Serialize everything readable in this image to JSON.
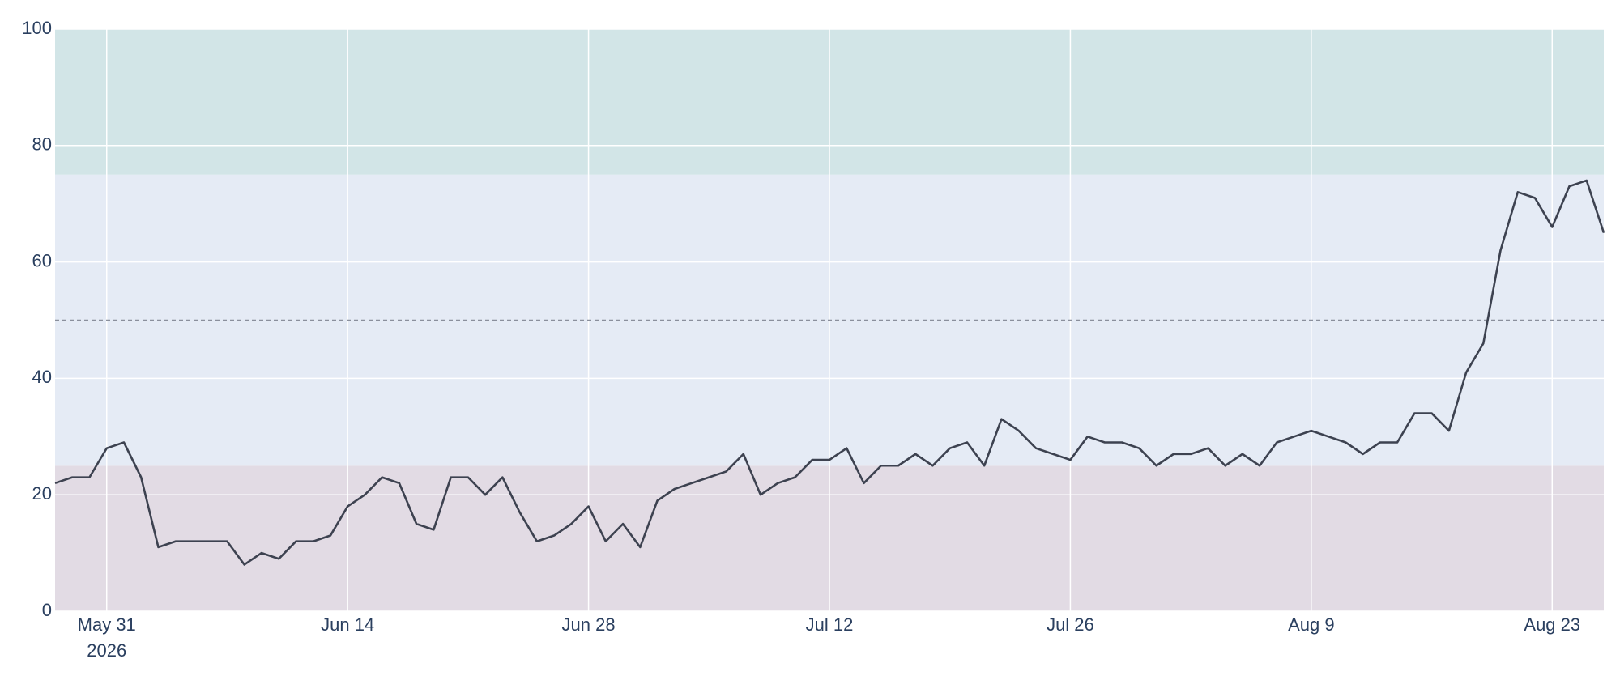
{
  "chart_data": {
    "type": "line",
    "x": [
      "2026-05-28",
      "2026-05-29",
      "2026-05-30",
      "2026-05-31",
      "2026-06-01",
      "2026-06-02",
      "2026-06-03",
      "2026-06-04",
      "2026-06-05",
      "2026-06-06",
      "2026-06-07",
      "2026-06-08",
      "2026-06-09",
      "2026-06-10",
      "2026-06-11",
      "2026-06-12",
      "2026-06-13",
      "2026-06-14",
      "2026-06-15",
      "2026-06-16",
      "2026-06-17",
      "2026-06-18",
      "2026-06-19",
      "2026-06-20",
      "2026-06-21",
      "2026-06-22",
      "2026-06-23",
      "2026-06-24",
      "2026-06-25",
      "2026-06-26",
      "2026-06-27",
      "2026-06-28",
      "2026-06-29",
      "2026-06-30",
      "2026-07-01",
      "2026-07-02",
      "2026-07-03",
      "2026-07-04",
      "2026-07-05",
      "2026-07-06",
      "2026-07-07",
      "2026-07-08",
      "2026-07-09",
      "2026-07-10",
      "2026-07-11",
      "2026-07-12",
      "2026-07-13",
      "2026-07-14",
      "2026-07-15",
      "2026-07-16",
      "2026-07-17",
      "2026-07-18",
      "2026-07-19",
      "2026-07-20",
      "2026-07-21",
      "2026-07-22",
      "2026-07-23",
      "2026-07-24",
      "2026-07-25",
      "2026-07-26",
      "2026-07-27",
      "2026-07-28",
      "2026-07-29",
      "2026-07-30",
      "2026-07-31",
      "2026-08-01",
      "2026-08-02",
      "2026-08-03",
      "2026-08-04",
      "2026-08-05",
      "2026-08-06",
      "2026-08-07",
      "2026-08-08",
      "2026-08-09",
      "2026-08-10",
      "2026-08-11",
      "2026-08-12",
      "2026-08-13",
      "2026-08-14",
      "2026-08-15",
      "2026-08-16",
      "2026-08-17",
      "2026-08-18",
      "2026-08-19",
      "2026-08-20",
      "2026-08-21",
      "2026-08-22",
      "2026-08-23",
      "2026-08-24",
      "2026-08-25",
      "2026-08-26"
    ],
    "values": [
      22,
      23,
      23,
      28,
      29,
      23,
      11,
      12,
      12,
      12,
      12,
      8,
      10,
      9,
      12,
      12,
      13,
      18,
      20,
      23,
      22,
      15,
      14,
      23,
      23,
      20,
      23,
      17,
      12,
      13,
      15,
      18,
      12,
      15,
      11,
      19,
      21,
      22,
      23,
      24,
      27,
      20,
      22,
      23,
      26,
      26,
      28,
      22,
      25,
      25,
      27,
      25,
      28,
      29,
      25,
      33,
      31,
      28,
      27,
      26,
      30,
      29,
      29,
      28,
      25,
      27,
      27,
      28,
      25,
      27,
      25,
      29,
      30,
      31,
      30,
      29,
      27,
      29,
      29,
      34,
      34,
      31,
      41,
      46,
      62,
      72,
      71,
      66,
      73,
      74,
      65
    ],
    "color": "#3d4250",
    "xlim": [
      "2026-05-28",
      "2026-08-26"
    ],
    "xticks": [
      {
        "value": "2026-05-31",
        "label": "May 31",
        "sublabel": "2026"
      },
      {
        "value": "2026-06-14",
        "label": "Jun 14"
      },
      {
        "value": "2026-06-28",
        "label": "Jun 28"
      },
      {
        "value": "2026-07-12",
        "label": "Jul 12"
      },
      {
        "value": "2026-07-26",
        "label": "Jul 26"
      },
      {
        "value": "2026-08-09",
        "label": "Aug 9"
      },
      {
        "value": "2026-08-23",
        "label": "Aug 23"
      }
    ],
    "ylim": [
      0,
      100
    ],
    "yticks": [
      0,
      20,
      40,
      60,
      80,
      100
    ],
    "grid": true,
    "bands": [
      {
        "from": 0,
        "to": 25,
        "color": "#e2dbe4"
      },
      {
        "from": 25,
        "to": 75,
        "color": "#e5ebf5"
      },
      {
        "from": 75,
        "to": 100,
        "color": "#d2e5e7"
      }
    ],
    "reference_line": 50
  }
}
